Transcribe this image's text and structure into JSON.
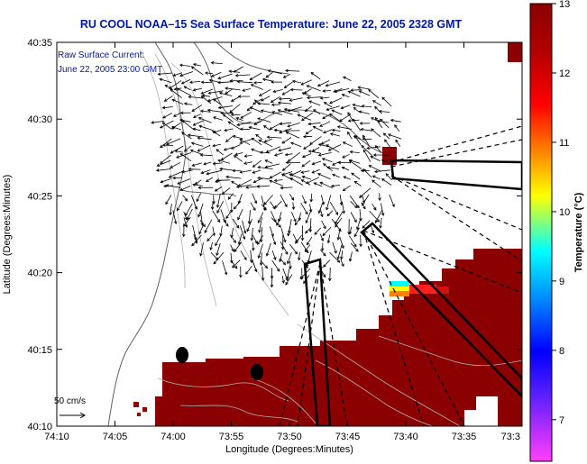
{
  "title": "RU COOL  NOAA–15  Sea Surface Temperature:  June 22, 2005 2328 GMT",
  "annotation": {
    "line1": "Raw Surface Current:",
    "line2": "June 22, 2005 23:00 GMT"
  },
  "scale_label": "50 cm/s",
  "axes": {
    "xlabel": "Longitude (Degrees:Minutes)",
    "ylabel": "Latitude (Degrees:Minutes)",
    "xticks": [
      "74:10",
      "74:05",
      "74:00",
      "73:55",
      "73:50",
      "73:45",
      "73:40",
      "73:35",
      "73:3"
    ],
    "yticks": [
      "40:35",
      "40:30",
      "40:25",
      "40:20",
      "40:15",
      "40:10"
    ]
  },
  "colorbar": {
    "label": "Temperature (°C)",
    "ticks": [
      "13",
      "12",
      "11",
      "10",
      "9",
      "8",
      "7"
    ],
    "min": 6.4,
    "max": 13,
    "colors": [
      "#ff40ff",
      "#8000ff",
      "#0000ff",
      "#0090ff",
      "#00ffff",
      "#ffff00",
      "#ff8000",
      "#ff0000",
      "#b00000",
      "#8b0000"
    ]
  },
  "colors": {
    "title": "#0018a8",
    "sst_warm": "#8b0000",
    "land": "#ffffff"
  }
}
